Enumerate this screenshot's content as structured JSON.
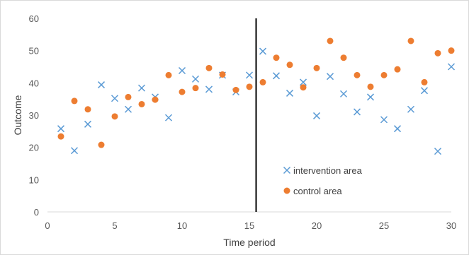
{
  "chart_data": {
    "type": "scatter",
    "title": "",
    "xlabel": "Time period",
    "ylabel": "Outcome",
    "xlim": [
      0,
      30
    ],
    "ylim": [
      0,
      60
    ],
    "xticks": [
      0,
      5,
      10,
      15,
      20,
      25,
      30
    ],
    "yticks": [
      0,
      10,
      20,
      30,
      40,
      50,
      60
    ],
    "grid": false,
    "legend_position": "inside-lower-right",
    "intervention_line_x": 15.5,
    "series": [
      {
        "name": "intervention area",
        "marker": "x",
        "color": "#5b9bd5",
        "points": [
          [
            1,
            25.8
          ],
          [
            2,
            19
          ],
          [
            3,
            27.2
          ],
          [
            4,
            39.4
          ],
          [
            5,
            35.2
          ],
          [
            6,
            31.8
          ],
          [
            7,
            38.4
          ],
          [
            8,
            35.6
          ],
          [
            9,
            29.2
          ],
          [
            10,
            43.8
          ],
          [
            11,
            41.2
          ],
          [
            12,
            38
          ],
          [
            13,
            42.4
          ],
          [
            14,
            37.2
          ],
          [
            15,
            42.4
          ],
          [
            16,
            49.8
          ],
          [
            17,
            42.2
          ],
          [
            18,
            36.8
          ],
          [
            19,
            40.2
          ],
          [
            20,
            29.8
          ],
          [
            21,
            42
          ],
          [
            22,
            36.6
          ],
          [
            23,
            31
          ],
          [
            24,
            35.6
          ],
          [
            25,
            28.6
          ],
          [
            26,
            25.8
          ],
          [
            27,
            31.8
          ],
          [
            28,
            37.6
          ],
          [
            29,
            18.8
          ],
          [
            30,
            45
          ]
        ]
      },
      {
        "name": "control area",
        "marker": "circle",
        "color": "#ed7d31",
        "points": [
          [
            1,
            23.4
          ],
          [
            2,
            34.4
          ],
          [
            3,
            31.8
          ],
          [
            4,
            20.8
          ],
          [
            5,
            29.6
          ],
          [
            6,
            35.6
          ],
          [
            7,
            33.4
          ],
          [
            8,
            34.8
          ],
          [
            9,
            42.4
          ],
          [
            10,
            37.2
          ],
          [
            11,
            38.4
          ],
          [
            12,
            44.6
          ],
          [
            13,
            42.6
          ],
          [
            14,
            37.8
          ],
          [
            15,
            38.8
          ],
          [
            16,
            40.2
          ],
          [
            17,
            47.8
          ],
          [
            18,
            45.6
          ],
          [
            19,
            38.6
          ],
          [
            20,
            44.6
          ],
          [
            21,
            53
          ],
          [
            22,
            47.8
          ],
          [
            23,
            42.4
          ],
          [
            24,
            38.8
          ],
          [
            25,
            42.4
          ],
          [
            26,
            44.2
          ],
          [
            27,
            53
          ],
          [
            28,
            40.2
          ],
          [
            29,
            49.2
          ],
          [
            30,
            50
          ]
        ]
      }
    ]
  }
}
